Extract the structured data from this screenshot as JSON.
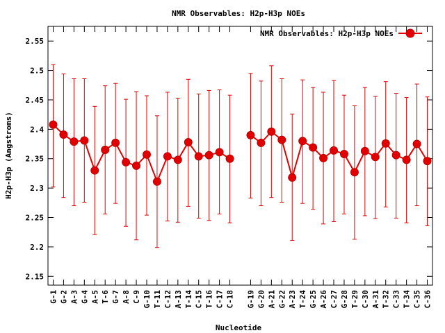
{
  "chart_data": {
    "type": "line",
    "title": "NMR Observables: H2p-H3p NOEs",
    "xlabel": "Nucleotide",
    "ylabel": "H2p-H3p (Angstroms)",
    "ylim": [
      2.135,
      2.575
    ],
    "yticks": [
      2.15,
      2.2,
      2.25,
      2.3,
      2.35,
      2.4,
      2.45,
      2.5,
      2.55
    ],
    "legend_position": "top-right",
    "grid": false,
    "categories": [
      "G-1",
      "G-2",
      "A-3",
      "G-4",
      "A-5",
      "T-6",
      "G-7",
      "A-8",
      "C-9",
      "G-10",
      "T-11",
      "C-12",
      "A-13",
      "T-14",
      "C-15",
      "T-16",
      "C-17",
      "C-18",
      "G-19",
      "G-20",
      "A-21",
      "G-22",
      "A-23",
      "T-24",
      "G-25",
      "A-26",
      "C-27",
      "G-28",
      "T-29",
      "C-30",
      "A-31",
      "T-32",
      "C-33",
      "T-34",
      "C-35",
      "C-36"
    ],
    "x_positions": [
      1,
      2,
      3,
      4,
      5,
      6,
      7,
      8,
      9,
      10,
      11,
      12,
      13,
      14,
      15,
      16,
      17,
      18,
      20,
      21,
      22,
      23,
      24,
      25,
      26,
      27,
      28,
      29,
      30,
      31,
      32,
      33,
      34,
      35,
      36,
      37
    ],
    "xlim": [
      0.5,
      37.5
    ],
    "series": [
      {
        "name": "NMR Observables: H2p-H3p NOEs",
        "color": "#e00000",
        "values": [
          2.408,
          2.391,
          2.379,
          2.381,
          2.33,
          2.365,
          2.377,
          2.344,
          2.338,
          2.357,
          2.311,
          2.354,
          2.348,
          2.378,
          2.354,
          2.356,
          2.361,
          2.35,
          2.39,
          2.377,
          2.396,
          2.382,
          2.318,
          2.38,
          2.369,
          2.351,
          2.364,
          2.358,
          2.327,
          2.363,
          2.353,
          2.376,
          2.356,
          2.348,
          2.375,
          2.346
        ],
        "err_low": [
          2.302,
          2.284,
          2.27,
          2.276,
          2.221,
          2.256,
          2.274,
          2.235,
          2.212,
          2.254,
          2.199,
          2.244,
          2.242,
          2.269,
          2.249,
          2.245,
          2.256,
          2.241,
          2.283,
          2.27,
          2.284,
          2.276,
          2.211,
          2.274,
          2.264,
          2.239,
          2.243,
          2.256,
          2.213,
          2.253,
          2.248,
          2.268,
          2.249,
          2.241,
          2.27,
          2.236
        ],
        "err_high": [
          2.51,
          2.494,
          2.486,
          2.486,
          2.439,
          2.474,
          2.478,
          2.451,
          2.464,
          2.457,
          2.423,
          2.463,
          2.453,
          2.485,
          2.46,
          2.466,
          2.467,
          2.458,
          2.495,
          2.482,
          2.508,
          2.486,
          2.426,
          2.484,
          2.471,
          2.463,
          2.483,
          2.458,
          2.44,
          2.471,
          2.456,
          2.481,
          2.461,
          2.454,
          2.477,
          2.455
        ]
      }
    ]
  }
}
